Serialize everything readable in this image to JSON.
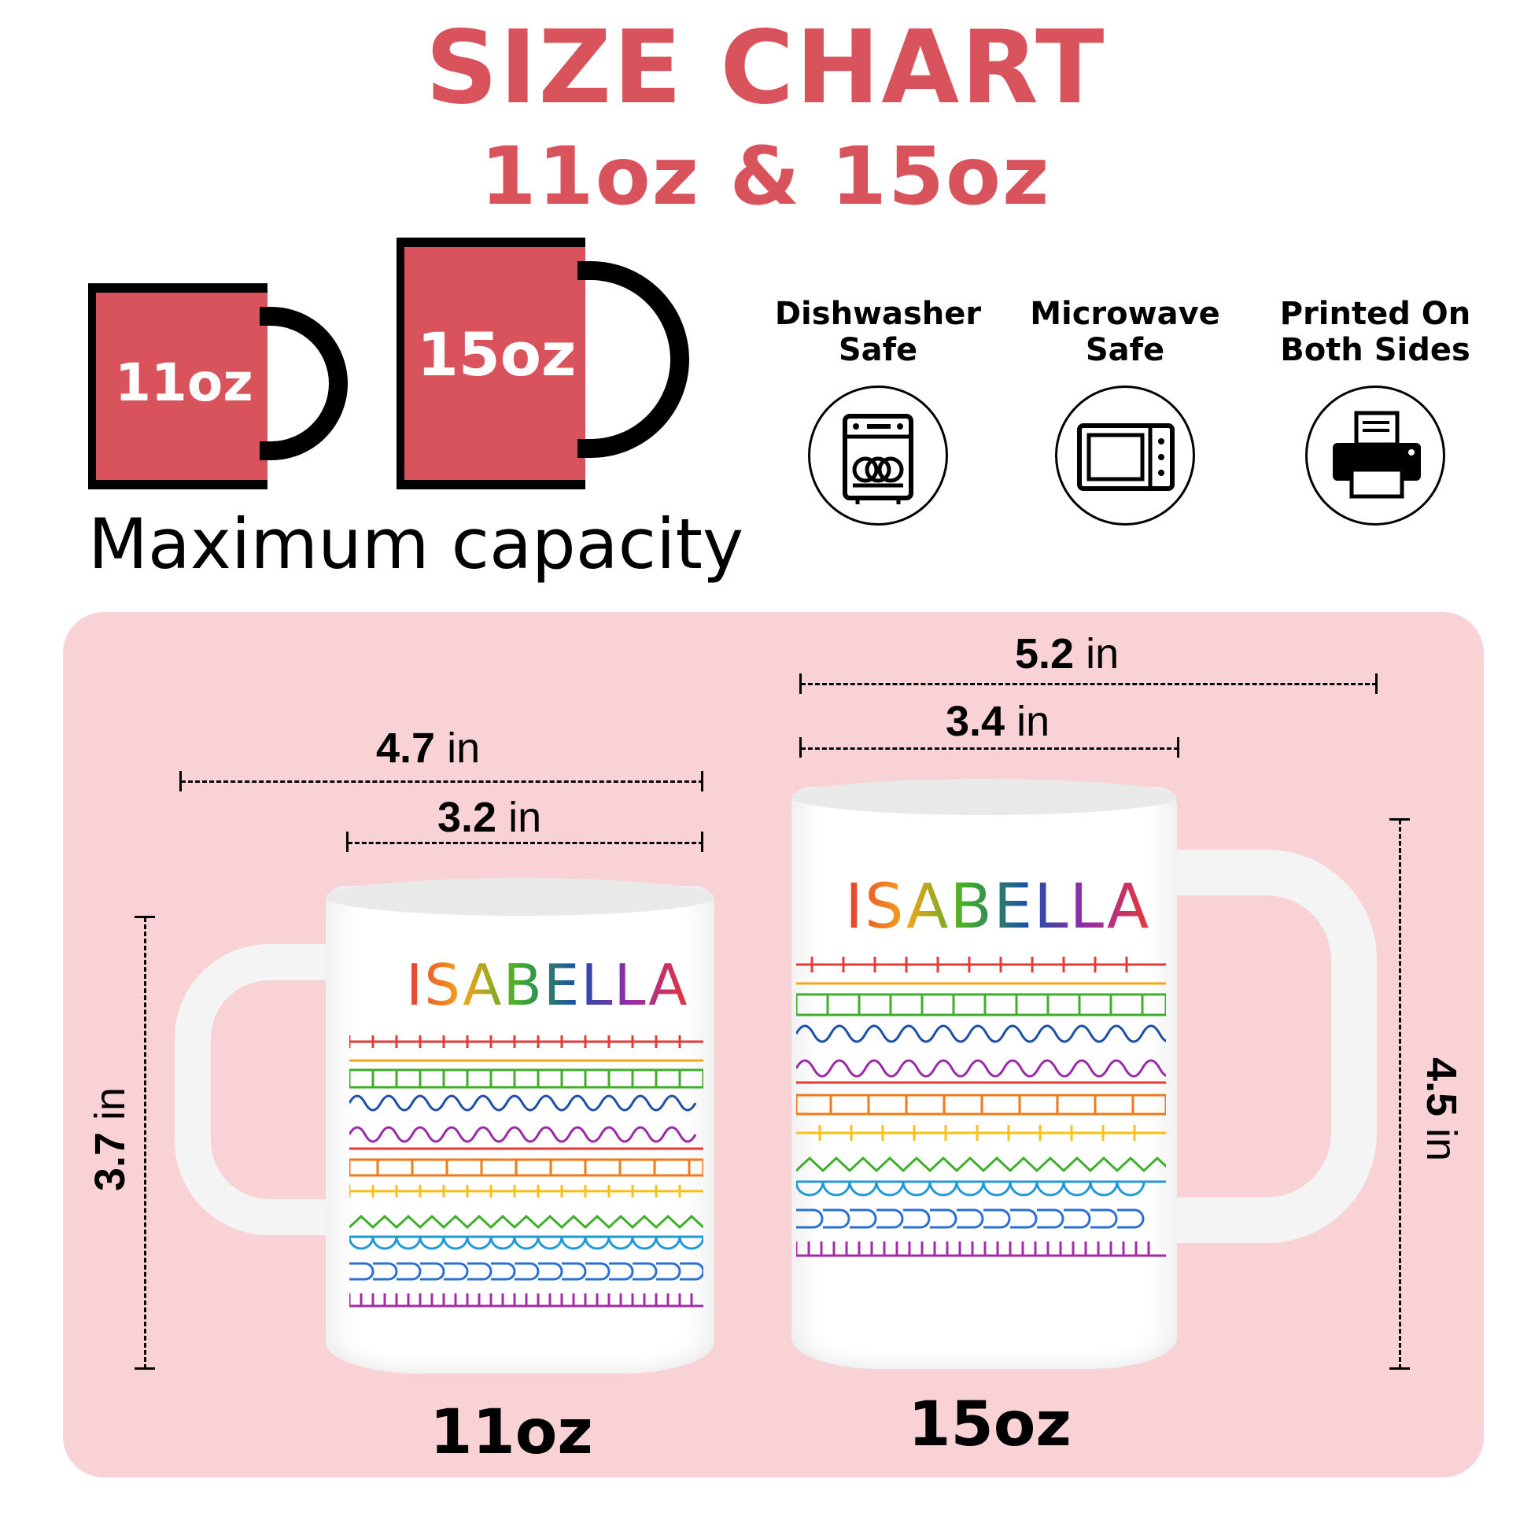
{
  "header": {
    "title": "SIZE CHART",
    "subtitle": "11oz & 15oz"
  },
  "capacity": {
    "mug_small_label": "11oz",
    "mug_large_label": "15oz",
    "caption": "Maximum capacity",
    "mug_color": "#d9535c"
  },
  "features": [
    {
      "label_line1": "Dishwasher",
      "label_line2": "Safe",
      "icon": "dishwasher-icon"
    },
    {
      "label_line1": "Microwave",
      "label_line2": "Safe",
      "icon": "microwave-icon"
    },
    {
      "label_line1": "Printed On",
      "label_line2": "Both Sides",
      "icon": "printer-icon"
    }
  ],
  "mug_11oz": {
    "name_text": "ISABELLA",
    "width_total_value": "4.7",
    "width_body_value": "3.2",
    "height_value": "3.7",
    "unit": "in",
    "label": "11oz"
  },
  "mug_15oz": {
    "name_text": "ISABELLA",
    "width_total_value": "5.2",
    "width_body_value": "3.4",
    "height_value": "4.5",
    "unit": "in",
    "label": "15oz"
  },
  "colors": {
    "accent": "#d9535c",
    "panel": "#f8d2d4",
    "rainbow": [
      "#e53935",
      "#f6a41a",
      "#3fae2a",
      "#1c4fa8",
      "#9b2aa8",
      "#e53935",
      "#f07a1a",
      "#f6c21a",
      "#3fae2a",
      "#1f9ad6",
      "#2a6fd6",
      "#a52aa8"
    ]
  }
}
